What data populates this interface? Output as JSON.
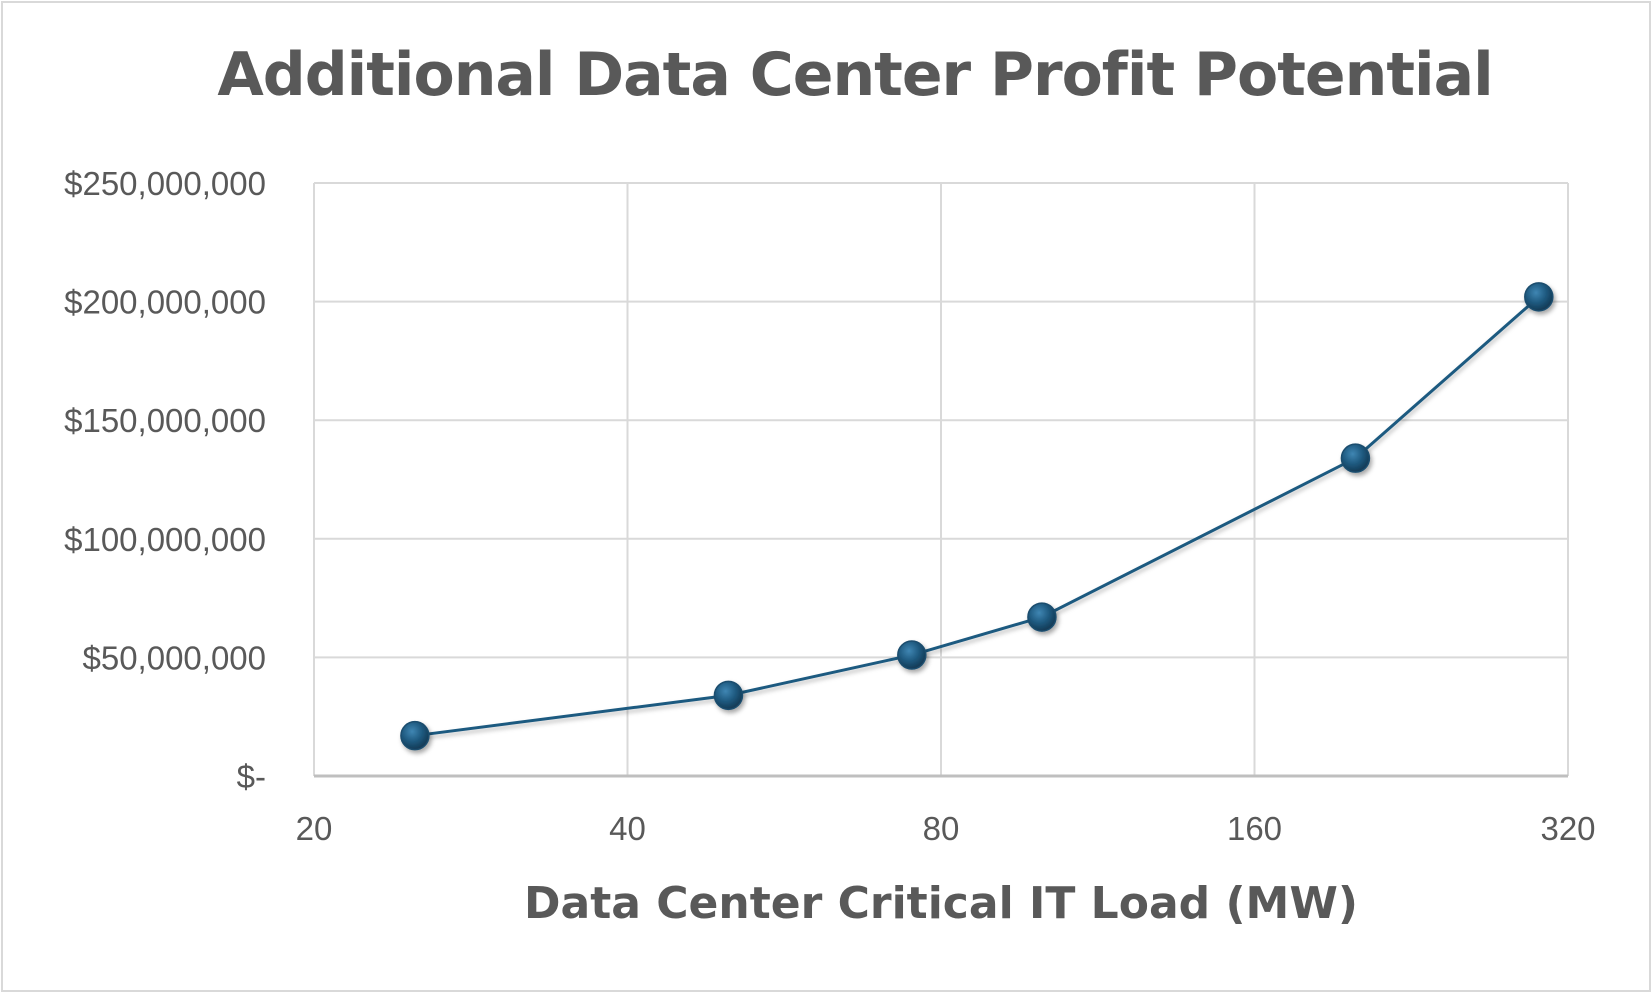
{
  "chart_data": {
    "type": "scatter",
    "title": "Additional Data Center Profit Potential",
    "xlabel": "Data Center Critical IT Load (MW)",
    "ylabel": "",
    "x_scale": "log2",
    "xlim": [
      20,
      320
    ],
    "ylim": [
      0,
      250000000
    ],
    "x_ticks": [
      "20",
      "40",
      "80",
      "160",
      "320"
    ],
    "x_tick_values": [
      20,
      40,
      80,
      160,
      320
    ],
    "y_ticks": [
      "$-",
      "$50,000,000",
      "$100,000,000",
      "$150,000,000",
      "$200,000,000",
      "$250,000,000"
    ],
    "y_tick_values": [
      0,
      50000000,
      100000000,
      150000000,
      200000000,
      250000000
    ],
    "grid": true,
    "legend": "none",
    "series": [
      {
        "color": "#1f5a80",
        "marker": "circle",
        "x": [
          25,
          50,
          75,
          100,
          200,
          300
        ],
        "y": [
          17000000,
          34000000,
          51000000,
          67000000,
          134000000,
          202000000
        ]
      }
    ]
  }
}
